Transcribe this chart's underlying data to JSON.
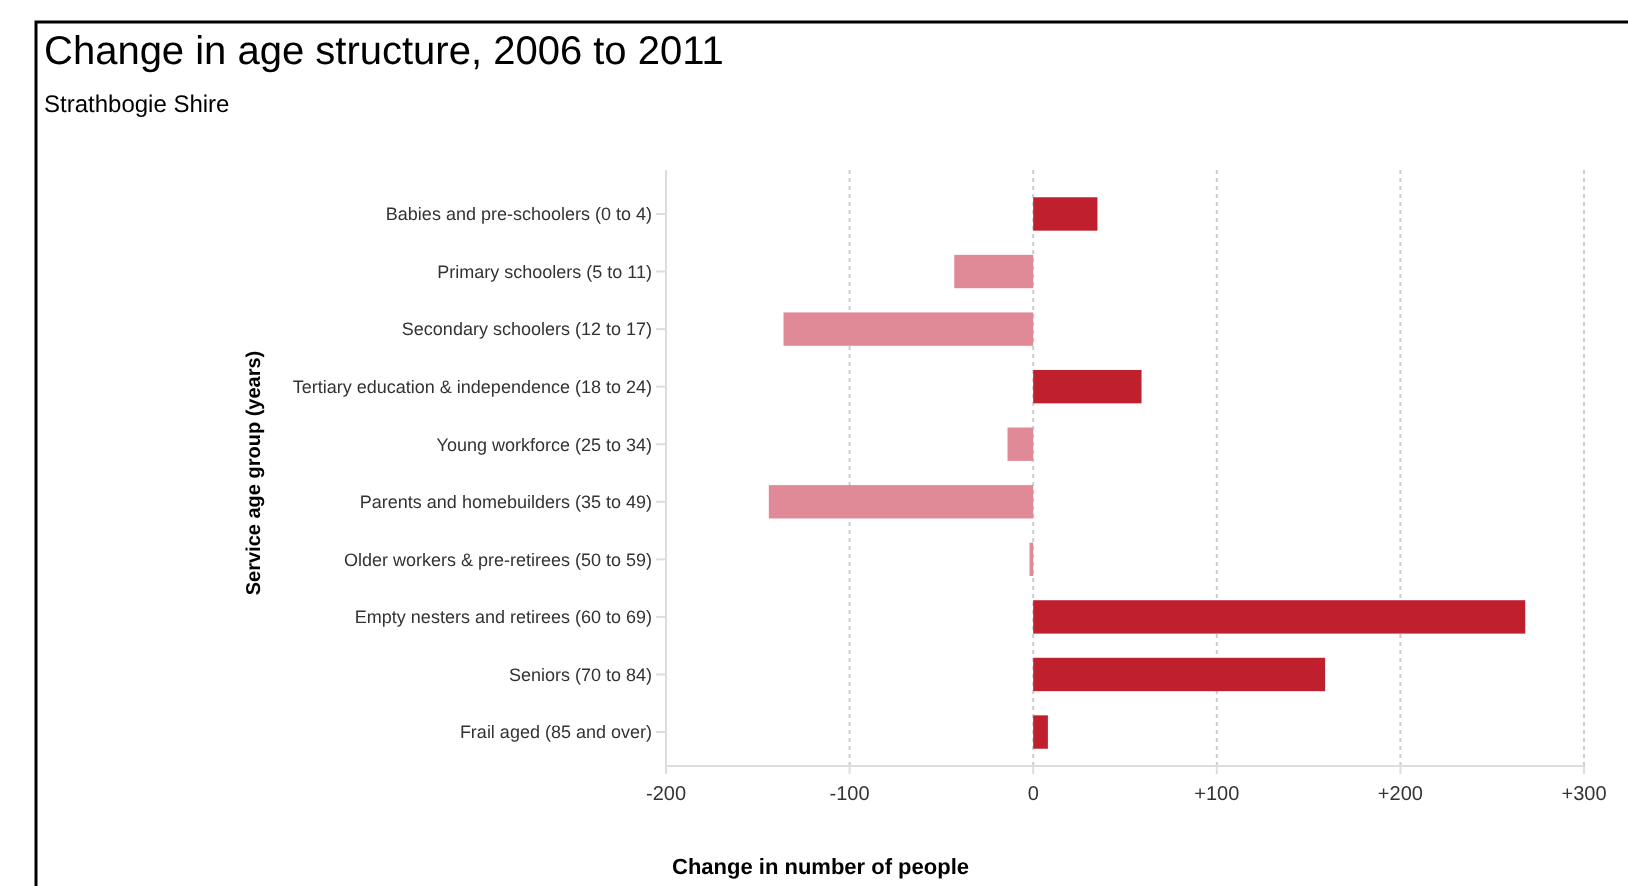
{
  "chart_data": {
    "type": "bar",
    "orientation": "horizontal",
    "title": "Change in age structure, 2006 to 2011",
    "subtitle": "Strathbogie Shire",
    "xlabel": "Change in number of people",
    "ylabel": "Service age group (years)",
    "categories": [
      "Babies and pre-schoolers (0 to 4)",
      "Primary schoolers (5 to 11)",
      "Secondary schoolers (12 to 17)",
      "Tertiary education & independence (18 to 24)",
      "Young workforce (25 to 34)",
      "Parents and homebuilders (35 to 49)",
      "Older workers & pre-retirees (50 to 59)",
      "Empty nesters and retirees (60 to 69)",
      "Seniors (70 to 84)",
      "Frail aged (85 and over)"
    ],
    "values": [
      35,
      -43,
      -136,
      59,
      -14,
      -144,
      -2,
      268,
      159,
      8
    ],
    "colors": [
      "#c01f2e",
      "#e08a98",
      "#e08a98",
      "#c01f2e",
      "#e08a98",
      "#e08a98",
      "#e08a98",
      "#c01f2e",
      "#c01f2e",
      "#c01f2e"
    ],
    "xlim": [
      -200,
      300
    ],
    "xticks": [
      -200,
      -100,
      0,
      {
        "value": 100,
        "label": "+100"
      },
      {
        "value": 200,
        "label": "+200"
      },
      {
        "value": 300,
        "label": "+300"
      }
    ],
    "grid": "x"
  }
}
